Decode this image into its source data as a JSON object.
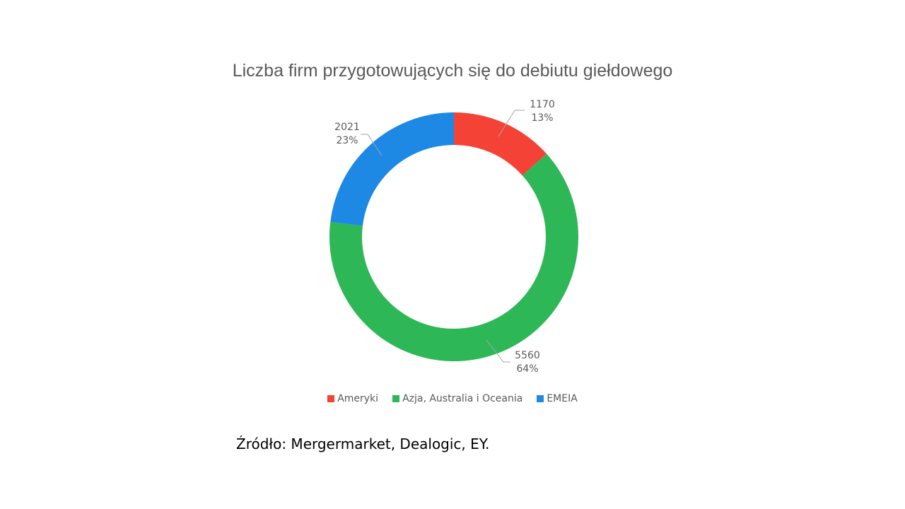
{
  "chart_data": {
    "type": "pie",
    "subtype": "donut",
    "title": "Liczba firm przygotowujących się do debiutu giełdowego",
    "categories": [
      "Ameryki",
      "Azja, Australia i Oceania",
      "EMEIA"
    ],
    "values": [
      1170,
      5560,
      2021
    ],
    "percentages": [
      "13%",
      "64%",
      "23%"
    ],
    "colors": [
      "#f44336",
      "#2db757",
      "#1e88e5"
    ],
    "legend_position": "bottom"
  },
  "labels": {
    "ameryki_value": "1170",
    "ameryki_pct": "13%",
    "azja_value": "5560",
    "azja_pct": "64%",
    "emeia_value": "2021",
    "emeia_pct": "23%"
  },
  "legend": [
    {
      "label": "Ameryki",
      "color": "#f44336"
    },
    {
      "label": "Azja, Australia i Oceania",
      "color": "#2db757"
    },
    {
      "label": "EMEIA",
      "color": "#1e88e5"
    }
  ],
  "source": "Źródło: Mergermarket, Dealogic, EY."
}
